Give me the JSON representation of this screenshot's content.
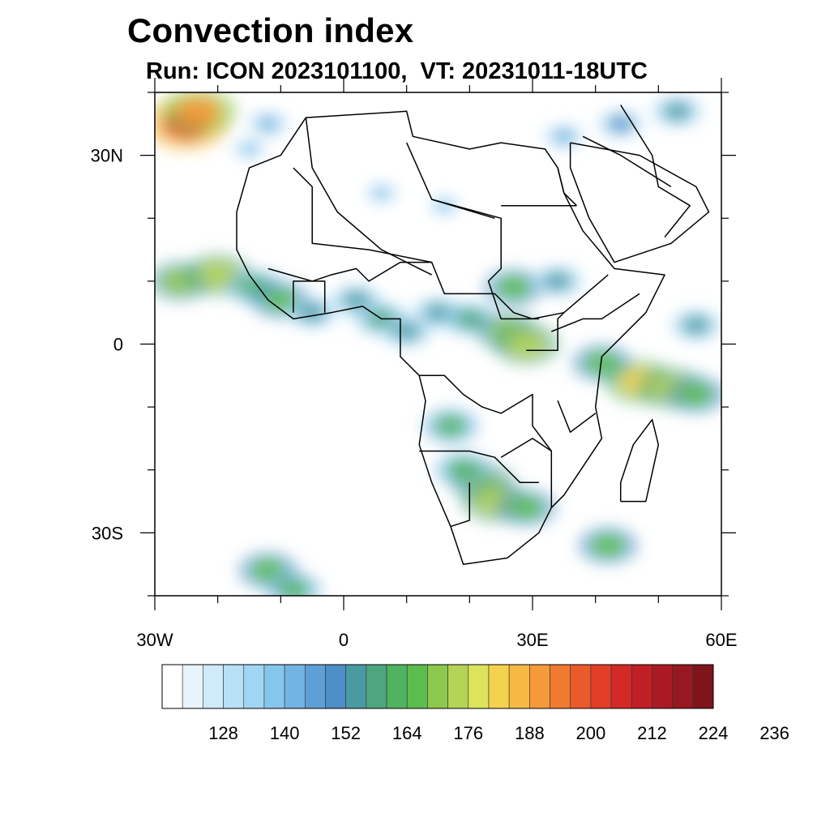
{
  "title": "Convection index",
  "subtitle": "Run: ICON 2023101100,  VT: 20231011-18UTC",
  "map": {
    "lon_range": [
      -30,
      60
    ],
    "lat_range": [
      -40,
      40
    ],
    "lon_ticks": [
      {
        "value": -30,
        "label": "30W"
      },
      {
        "value": 0,
        "label": "0"
      },
      {
        "value": 30,
        "label": "30E"
      },
      {
        "value": 60,
        "label": "60E"
      }
    ],
    "lat_ticks": [
      {
        "value": 30,
        "label": "30N"
      },
      {
        "value": 0,
        "label": "0"
      },
      {
        "value": -30,
        "label": "30S"
      }
    ],
    "field": "Convection index",
    "colors": {
      "land_border": "#000000",
      "background": "#ffffff"
    }
  },
  "colorbar": {
    "colors": [
      "#ffffff",
      "#e8f4fb",
      "#cfeaf8",
      "#b8e0f6",
      "#a0d6f4",
      "#86c6ec",
      "#72b4e4",
      "#5d9fd6",
      "#4e8fc7",
      "#4a9aa3",
      "#4ea67e",
      "#4fb35f",
      "#5bbd4d",
      "#8cc84e",
      "#b4d455",
      "#dde35a",
      "#f4d24e",
      "#f6b944",
      "#f59a3a",
      "#f17a31",
      "#eb5a2b",
      "#e23e28",
      "#d32a27",
      "#c01f26",
      "#ab1a24",
      "#961820",
      "#7f141c"
    ],
    "labels": [
      "128",
      "140",
      "152",
      "164",
      "176",
      "188",
      "200",
      "212",
      "224",
      "236"
    ]
  },
  "blobs": [
    {
      "lon": -25,
      "lat": 35,
      "v": 205
    },
    {
      "lon": -23,
      "lat": 37,
      "v": 190
    },
    {
      "lon": -12,
      "lat": 35,
      "v": 140
    },
    {
      "lon": -15,
      "lat": 31,
      "v": 135
    },
    {
      "lon": -26,
      "lat": 10,
      "v": 170
    },
    {
      "lon": -20,
      "lat": 11,
      "v": 175
    },
    {
      "lon": -14,
      "lat": 9,
      "v": 160
    },
    {
      "lon": -10,
      "lat": 7,
      "v": 165
    },
    {
      "lon": -5,
      "lat": 5,
      "v": 150
    },
    {
      "lon": 2,
      "lat": 7,
      "v": 150
    },
    {
      "lon": 6,
      "lat": 4,
      "v": 155
    },
    {
      "lon": 10,
      "lat": 2,
      "v": 150
    },
    {
      "lon": 15,
      "lat": 5,
      "v": 150
    },
    {
      "lon": 20,
      "lat": 4,
      "v": 155
    },
    {
      "lon": 26,
      "lat": 2,
      "v": 170
    },
    {
      "lon": 29,
      "lat": 0,
      "v": 175
    },
    {
      "lon": 27,
      "lat": 9,
      "v": 165
    },
    {
      "lon": 34,
      "lat": 10,
      "v": 150
    },
    {
      "lon": 17,
      "lat": -13,
      "v": 160
    },
    {
      "lon": 22,
      "lat": -22,
      "v": 170
    },
    {
      "lon": 24,
      "lat": -25,
      "v": 175
    },
    {
      "lon": 29,
      "lat": -26,
      "v": 165
    },
    {
      "lon": 19,
      "lat": -20,
      "v": 160
    },
    {
      "lon": 41,
      "lat": -3,
      "v": 165
    },
    {
      "lon": 47,
      "lat": -6,
      "v": 180
    },
    {
      "lon": 52,
      "lat": -7,
      "v": 175
    },
    {
      "lon": 56,
      "lat": -8,
      "v": 165
    },
    {
      "lon": 56,
      "lat": 3,
      "v": 150
    },
    {
      "lon": 42,
      "lat": -32,
      "v": 165
    },
    {
      "lon": -12,
      "lat": -36,
      "v": 165
    },
    {
      "lon": -8,
      "lat": -39,
      "v": 160
    },
    {
      "lon": 44,
      "lat": 35,
      "v": 145
    },
    {
      "lon": 53,
      "lat": 37,
      "v": 150
    },
    {
      "lon": 35,
      "lat": 33,
      "v": 140
    },
    {
      "lon": 6,
      "lat": 24,
      "v": 135
    },
    {
      "lon": 16,
      "lat": 22,
      "v": 132
    }
  ],
  "borders_lonlat": [
    [
      [
        -17,
        21
      ],
      [
        -15,
        28
      ],
      [
        -10,
        30
      ],
      [
        -6,
        36
      ],
      [
        10,
        37
      ],
      [
        11,
        33
      ],
      [
        20,
        31
      ],
      [
        25,
        32
      ],
      [
        32,
        31
      ],
      [
        34,
        28
      ],
      [
        35,
        24
      ],
      [
        38,
        18
      ],
      [
        43,
        12
      ],
      [
        51,
        11
      ],
      [
        48,
        5
      ],
      [
        41,
        -2
      ],
      [
        40,
        -10
      ],
      [
        41,
        -15
      ],
      [
        35,
        -24
      ],
      [
        33,
        -26
      ],
      [
        31,
        -30
      ],
      [
        26,
        -34
      ],
      [
        19,
        -35
      ],
      [
        17,
        -29
      ],
      [
        14,
        -22
      ],
      [
        12,
        -16
      ],
      [
        13,
        -9
      ],
      [
        12,
        -5
      ],
      [
        9,
        -2
      ],
      [
        9,
        4
      ],
      [
        6,
        4
      ],
      [
        3,
        6
      ],
      [
        -2,
        5
      ],
      [
        -8,
        4
      ],
      [
        -12,
        7
      ],
      [
        -15,
        11
      ],
      [
        -17,
        15
      ],
      [
        -17,
        21
      ]
    ],
    [
      [
        44,
        -25
      ],
      [
        48,
        -25
      ],
      [
        50,
        -16
      ],
      [
        49,
        -12
      ],
      [
        46,
        -16
      ],
      [
        44,
        -22
      ],
      [
        44,
        -25
      ]
    ],
    [
      [
        -6,
        36
      ],
      [
        -5,
        28
      ],
      [
        -1,
        21
      ],
      [
        6,
        15
      ],
      [
        12,
        12
      ],
      [
        14,
        11
      ]
    ],
    [
      [
        10,
        32
      ],
      [
        14,
        23
      ],
      [
        25,
        20
      ],
      [
        25,
        12
      ],
      [
        23,
        10
      ],
      [
        25,
        4
      ],
      [
        31,
        4
      ]
    ],
    [
      [
        25,
        22
      ],
      [
        37,
        22
      ]
    ],
    [
      [
        37,
        22
      ],
      [
        35,
        24
      ],
      [
        34,
        28
      ]
    ],
    [
      [
        14,
        23
      ],
      [
        24,
        20
      ]
    ],
    [
      [
        -8,
        28
      ],
      [
        -5,
        25
      ],
      [
        -5,
        16
      ],
      [
        4,
        15
      ],
      [
        14,
        13
      ],
      [
        16,
        8
      ],
      [
        24,
        8
      ],
      [
        27,
        5
      ],
      [
        30,
        4
      ],
      [
        35,
        5
      ],
      [
        42,
        11
      ]
    ],
    [
      [
        12,
        -5
      ],
      [
        16,
        -5
      ],
      [
        19,
        -8
      ],
      [
        22,
        -10
      ],
      [
        25,
        -11
      ],
      [
        30,
        -8
      ],
      [
        30,
        -13
      ],
      [
        33,
        -17
      ],
      [
        33,
        -26
      ]
    ],
    [
      [
        12,
        -17
      ],
      [
        20,
        -17
      ],
      [
        24,
        -18
      ],
      [
        28,
        -22
      ],
      [
        31,
        -22
      ]
    ],
    [
      [
        20,
        -22
      ],
      [
        20,
        -28
      ],
      [
        17,
        -29
      ]
    ],
    [
      [
        34,
        -9
      ],
      [
        36,
        -14
      ],
      [
        40,
        -11
      ]
    ],
    [
      [
        29,
        -1
      ],
      [
        34,
        -1
      ],
      [
        34,
        4
      ],
      [
        35,
        5
      ]
    ],
    [
      [
        25,
        -18
      ],
      [
        30,
        -15
      ],
      [
        33,
        -17
      ]
    ],
    [
      [
        -12,
        12
      ],
      [
        -5,
        10
      ],
      [
        -2,
        11
      ],
      [
        2,
        12
      ],
      [
        4,
        10
      ],
      [
        9,
        13
      ],
      [
        14,
        13
      ]
    ],
    [
      [
        -8,
        5
      ],
      [
        -8,
        10
      ],
      [
        -3,
        10
      ],
      [
        -3,
        5
      ]
    ],
    [
      [
        33,
        2
      ],
      [
        38,
        4
      ],
      [
        41,
        4
      ],
      [
        47,
        8
      ]
    ],
    [
      [
        36,
        32
      ],
      [
        47,
        30
      ],
      [
        56,
        25
      ],
      [
        58,
        21
      ],
      [
        52,
        16
      ],
      [
        43,
        13
      ],
      [
        39,
        20
      ],
      [
        36,
        28
      ],
      [
        36,
        32
      ]
    ],
    [
      [
        44,
        38
      ],
      [
        49,
        30
      ],
      [
        50,
        25
      ],
      [
        55,
        22
      ],
      [
        51,
        17
      ]
    ],
    [
      [
        38,
        33
      ],
      [
        44,
        30
      ],
      [
        52,
        25
      ]
    ]
  ]
}
